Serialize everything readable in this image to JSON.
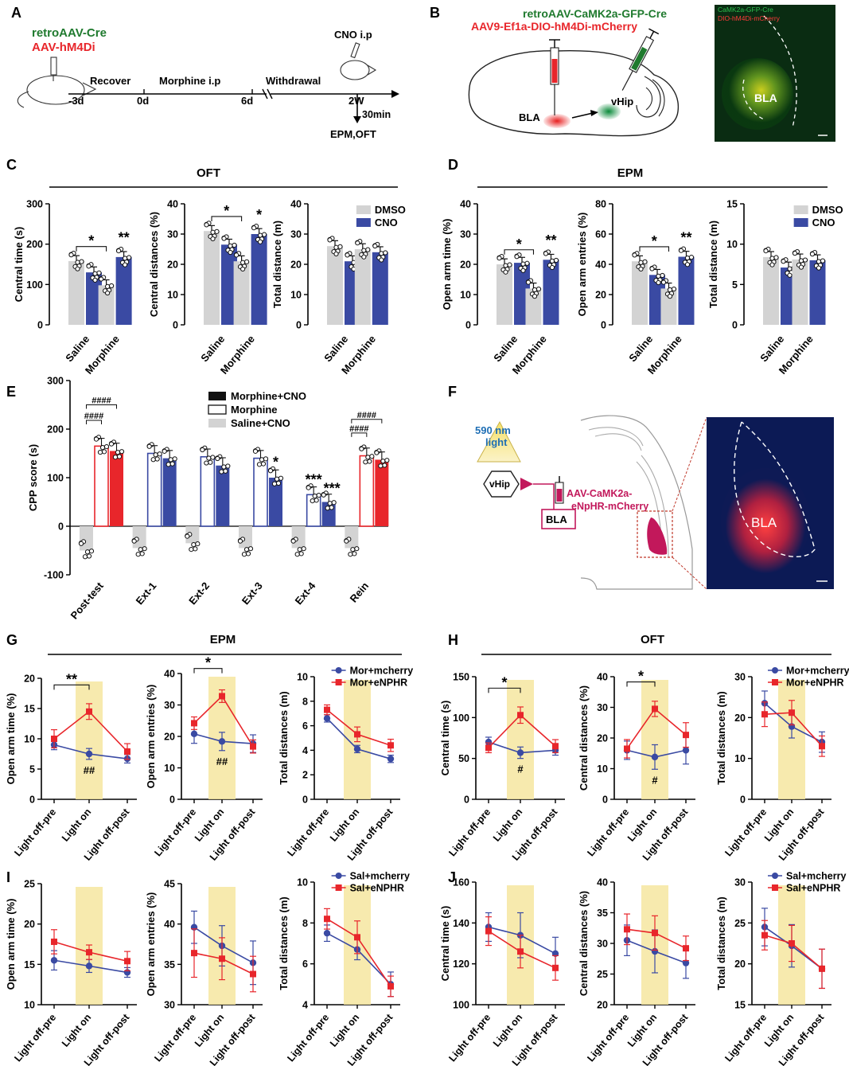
{
  "colors": {
    "grey": "#d3d3d3",
    "blue": "#3a4aa3",
    "red": "#e8262b",
    "yellow": "#f6e6a0",
    "green": "#1f7a2e",
    "magenta": "#c2185b",
    "black": "#111111"
  },
  "panel_letters": {
    "A": "A",
    "B": "B",
    "C": "C",
    "D": "D",
    "E": "E",
    "F": "F",
    "G": "G",
    "H": "H",
    "I": "I",
    "J": "J"
  },
  "panel_a": {
    "virus1": "retroAAV-Cre",
    "virus2": "AAV-hM4Di",
    "cno": "CNO i.p",
    "t0": "-3d",
    "t1": "0d",
    "t2": "6d",
    "t3": "2W",
    "recover": "Recover",
    "morphine": "Morphine i.p",
    "withdrawal": "Withdrawal",
    "delay": "30min",
    "tests": "EPM,OFT"
  },
  "panel_b": {
    "virus_green": "retroAAV-CaMK2a-GFP-Cre",
    "virus_red": "AAV9-Ef1a-DIO-hM4Di-mCherry",
    "bla": "BLA",
    "vhip": "vHip",
    "img_label1": "CaMK2a-GFP-Cre",
    "img_label2": "DIO-hM4Di-mCherry",
    "img_bla": "BLA"
  },
  "panel_f": {
    "light": "590 nm",
    "light2": "light",
    "vhip": "vHip",
    "bla": "BLA",
    "virus1": "AAV-CaMK2a-",
    "virus2": "eNpHR-mCherry",
    "img_bla": "BLA"
  },
  "section_titles": {
    "c": "OFT",
    "d": "EPM",
    "g": "EPM",
    "h": "OFT"
  },
  "chart_data": [
    {
      "id": "C1",
      "type": "bar",
      "title": "OFT",
      "ylabel": "Central time (s)",
      "categories": [
        "Saline",
        "Morphine"
      ],
      "ylim": [
        0,
        300
      ],
      "yticks": [
        0,
        100,
        200,
        300
      ],
      "series": [
        {
          "name": "DMSO",
          "values": [
            158,
            98
          ]
        },
        {
          "name": "CNO",
          "values": [
            130,
            168
          ]
        }
      ],
      "annotations": [
        "*",
        "**"
      ]
    },
    {
      "id": "C2",
      "type": "bar",
      "ylabel": "Central distances (%)",
      "categories": [
        "Saline",
        "Morphine"
      ],
      "ylim": [
        0,
        40
      ],
      "yticks": [
        0,
        10,
        20,
        30,
        40
      ],
      "series": [
        {
          "name": "DMSO",
          "values": [
            31,
            21
          ]
        },
        {
          "name": "CNO",
          "values": [
            26.5,
            30
          ]
        }
      ],
      "annotations": [
        "*",
        "*"
      ]
    },
    {
      "id": "C3",
      "type": "bar",
      "ylabel": "Total distance (m)",
      "categories": [
        "Saline",
        "Morphine"
      ],
      "ylim": [
        0,
        40
      ],
      "yticks": [
        0,
        10,
        20,
        30,
        40
      ],
      "series": [
        {
          "name": "DMSO",
          "values": [
            26,
            25
          ]
        },
        {
          "name": "CNO",
          "values": [
            21,
            24
          ]
        }
      ],
      "legend": [
        "DMSO",
        "CNO"
      ]
    },
    {
      "id": "D1",
      "type": "bar",
      "title": "EPM",
      "ylabel": "Open arm time (%)",
      "categories": [
        "Saline",
        "Morphine"
      ],
      "ylim": [
        0,
        40
      ],
      "yticks": [
        0,
        10,
        20,
        30,
        40
      ],
      "series": [
        {
          "name": "DMSO",
          "values": [
            20,
            12
          ]
        },
        {
          "name": "CNO",
          "values": [
            20.5,
            21.5
          ]
        }
      ],
      "annotations": [
        "*",
        "**"
      ]
    },
    {
      "id": "D2",
      "type": "bar",
      "ylabel": "Open arm entries (%)",
      "categories": [
        "Saline",
        "Morphine"
      ],
      "ylim": [
        0,
        80
      ],
      "yticks": [
        0,
        20,
        40,
        60,
        80
      ],
      "series": [
        {
          "name": "DMSO",
          "values": [
            42,
            24
          ]
        },
        {
          "name": "CNO",
          "values": [
            33,
            45
          ]
        }
      ],
      "annotations": [
        "*",
        "**"
      ]
    },
    {
      "id": "D3",
      "type": "bar",
      "ylabel": "Total distance (m)",
      "categories": [
        "Saline",
        "Morphine"
      ],
      "ylim": [
        0,
        15
      ],
      "yticks": [
        0,
        5,
        10,
        15
      ],
      "series": [
        {
          "name": "DMSO",
          "values": [
            8.4,
            8.1
          ]
        },
        {
          "name": "CNO",
          "values": [
            7.1,
            8.0
          ]
        }
      ],
      "legend": [
        "DMSO",
        "CNO"
      ]
    },
    {
      "id": "E",
      "type": "bar",
      "ylabel": "CPP score (s)",
      "categories": [
        "Post-test",
        "Ext-1",
        "Ext-2",
        "Ext-3",
        "Ext-4",
        "Rein"
      ],
      "ylim": [
        -100,
        300
      ],
      "yticks": [
        -100,
        0,
        100,
        200,
        300
      ],
      "series": [
        {
          "name": "Saline+CNO",
          "values": [
            -50,
            -45,
            -35,
            -45,
            -45,
            -45
          ]
        },
        {
          "name": "Morphine",
          "values": [
            165,
            150,
            143,
            140,
            65,
            145
          ]
        },
        {
          "name": "Morphine+CNO",
          "values": [
            155,
            140,
            125,
            100,
            50,
            137
          ]
        }
      ],
      "legend": [
        "Morphine+CNO",
        "Morphine",
        "Saline+CNO"
      ],
      "annotations": [
        "####",
        "####",
        "####",
        "####",
        "*",
        "***",
        "***"
      ]
    },
    {
      "id": "G1",
      "type": "line",
      "title": "EPM",
      "ylabel": "Open arm time (%)",
      "categories": [
        "Light off-pre",
        "Light on",
        "Light off-post"
      ],
      "ylim": [
        0,
        20
      ],
      "yticks": [
        0,
        5,
        10,
        15,
        20
      ],
      "series": [
        {
          "name": "Mor+mcherry",
          "values": [
            9.0,
            7.5,
            6.7
          ],
          "err": [
            0.8,
            0.9,
            0.7
          ]
        },
        {
          "name": "Mor+eNPHR",
          "values": [
            10.0,
            14.5,
            7.9
          ],
          "err": [
            1.5,
            1.3,
            1.3
          ]
        }
      ],
      "annotations": [
        "**",
        "##"
      ]
    },
    {
      "id": "G2",
      "type": "line",
      "ylabel": "Open arm entries (%)",
      "categories": [
        "Light off-pre",
        "Light on",
        "Light off-post"
      ],
      "ylim": [
        0,
        40
      ],
      "yticks": [
        0,
        10,
        20,
        30,
        40
      ],
      "series": [
        {
          "name": "Mor+mcherry",
          "values": [
            20.8,
            18.4,
            17.7
          ],
          "err": [
            3.0,
            2.9,
            2.8
          ]
        },
        {
          "name": "Mor+eNPHR",
          "values": [
            24.2,
            32.8,
            16.8
          ],
          "err": [
            2.0,
            2.0,
            2.1
          ]
        }
      ],
      "annotations": [
        "*",
        "##"
      ]
    },
    {
      "id": "G3",
      "type": "line",
      "ylabel": "Total distances (m)",
      "categories": [
        "Light off-pre",
        "Light on",
        "Light off-post"
      ],
      "ylim": [
        0,
        10
      ],
      "yticks": [
        0,
        2,
        4,
        6,
        8,
        10
      ],
      "series": [
        {
          "name": "Mor+mcherry",
          "values": [
            6.6,
            4.1,
            3.3
          ],
          "err": [
            0.3,
            0.3,
            0.3
          ]
        },
        {
          "name": "Mor+eNPHR",
          "values": [
            7.3,
            5.3,
            4.4
          ],
          "err": [
            0.4,
            0.6,
            0.5
          ]
        }
      ],
      "legend": [
        "Mor+mcherry",
        "Mor+eNPHR"
      ]
    },
    {
      "id": "H1",
      "type": "line",
      "title": "OFT",
      "ylabel": "Central time (s)",
      "categories": [
        "Light off-pre",
        "Light on",
        "Light off-post"
      ],
      "ylim": [
        0,
        150
      ],
      "yticks": [
        0,
        50,
        100,
        150
      ],
      "series": [
        {
          "name": "Mor+mcherry",
          "values": [
            70,
            57,
            60
          ],
          "err": [
            6,
            7,
            6
          ]
        },
        {
          "name": "Mor+eNPHR",
          "values": [
            63,
            103,
            65
          ],
          "err": [
            6,
            10,
            8
          ]
        }
      ],
      "annotations": [
        "*",
        "#"
      ]
    },
    {
      "id": "H2",
      "type": "line",
      "ylabel": "Central distances (%)",
      "categories": [
        "Light off-pre",
        "Light on",
        "Light off-post"
      ],
      "ylim": [
        0,
        40
      ],
      "yticks": [
        0,
        10,
        20,
        30,
        40
      ],
      "series": [
        {
          "name": "Mor+mcherry",
          "values": [
            16,
            13.8,
            16
          ],
          "err": [
            3,
            4,
            4.5
          ]
        },
        {
          "name": "Mor+eNPHR",
          "values": [
            16.5,
            29.5,
            21
          ],
          "err": [
            3,
            2.5,
            4
          ]
        }
      ],
      "annotations": [
        "*",
        "#"
      ]
    },
    {
      "id": "H3",
      "type": "line",
      "ylabel": "Total distances (m)",
      "categories": [
        "Light off-pre",
        "Light on",
        "Light off-post"
      ],
      "ylim": [
        0,
        30
      ],
      "yticks": [
        0,
        10,
        20,
        30
      ],
      "series": [
        {
          "name": "Mor+mcherry",
          "values": [
            23.5,
            17.8,
            14
          ],
          "err": [
            3,
            2.8,
            2.5
          ]
        },
        {
          "name": "Mor+eNPHR",
          "values": [
            20.8,
            21.2,
            13
          ],
          "err": [
            3,
            3,
            2.5
          ]
        }
      ],
      "legend": [
        "Mor+mcherry",
        "Mor+eNPHR"
      ]
    },
    {
      "id": "I1",
      "type": "line",
      "ylabel": "Open arm time (%)",
      "categories": [
        "Light off-pre",
        "Light on",
        "Light off-post"
      ],
      "ylim": [
        10,
        25
      ],
      "yticks": [
        10,
        15,
        20,
        25
      ],
      "series": [
        {
          "name": "Sal+mcherry",
          "values": [
            15.5,
            14.8,
            14.0
          ],
          "err": [
            1.2,
            0.8,
            0.6
          ]
        },
        {
          "name": "Sal+eNPHR",
          "values": [
            17.8,
            16.5,
            15.4
          ],
          "err": [
            1.5,
            0.9,
            1.2
          ]
        }
      ]
    },
    {
      "id": "I2",
      "type": "line",
      "ylabel": "Open arm entries (%)",
      "categories": [
        "Light off-pre",
        "Light on",
        "Light off-post"
      ],
      "ylim": [
        30,
        45
      ],
      "yticks": [
        30,
        35,
        40,
        45
      ],
      "series": [
        {
          "name": "Sal+mcherry",
          "values": [
            39.6,
            37.3,
            35.2
          ],
          "err": [
            2.0,
            2.5,
            2.7
          ]
        },
        {
          "name": "Sal+eNPHR",
          "values": [
            36.4,
            35.7,
            33.8
          ],
          "err": [
            3.0,
            2.6,
            2.2
          ]
        }
      ]
    },
    {
      "id": "I3",
      "type": "line",
      "ylabel": "Total distances (m)",
      "categories": [
        "Light off-pre",
        "Light on",
        "Light off-post"
      ],
      "ylim": [
        4,
        10
      ],
      "yticks": [
        4,
        6,
        8,
        10
      ],
      "series": [
        {
          "name": "Sal+mcherry",
          "values": [
            7.5,
            6.7,
            5.0
          ],
          "err": [
            0.4,
            0.5,
            0.6
          ]
        },
        {
          "name": "Sal+eNPHR",
          "values": [
            8.2,
            7.3,
            4.9
          ],
          "err": [
            0.5,
            0.8,
            0.5
          ]
        }
      ],
      "legend": [
        "Sal+mcherry",
        "Sal+eNPHR"
      ]
    },
    {
      "id": "J1",
      "type": "line",
      "ylabel": "Central time (s)",
      "categories": [
        "Light off-pre",
        "Light on",
        "Light off-post"
      ],
      "ylim": [
        100,
        160
      ],
      "yticks": [
        100,
        120,
        140,
        160
      ],
      "series": [
        {
          "name": "Sal+mcherry",
          "values": [
            138,
            134,
            125
          ],
          "err": [
            7,
            11,
            8
          ]
        },
        {
          "name": "Sal+eNPHR",
          "values": [
            136,
            126,
            118
          ],
          "err": [
            7,
            8,
            6
          ]
        }
      ]
    },
    {
      "id": "J2",
      "type": "line",
      "ylabel": "Central distances (%)",
      "categories": [
        "Light off-pre",
        "Light on",
        "Light off-post"
      ],
      "ylim": [
        20,
        40
      ],
      "yticks": [
        20,
        25,
        30,
        35,
        40
      ],
      "series": [
        {
          "name": "Sal+mcherry",
          "values": [
            30.5,
            28.7,
            26.8
          ],
          "err": [
            2.5,
            3.5,
            2.5
          ]
        },
        {
          "name": "Sal+eNPHR",
          "values": [
            32.3,
            31.7,
            29.2
          ],
          "err": [
            2.5,
            2.8,
            2.0
          ]
        }
      ]
    },
    {
      "id": "J3",
      "type": "line",
      "ylabel": "Total distances (m)",
      "categories": [
        "Light off-pre",
        "Light on",
        "Light off-post"
      ],
      "ylim": [
        15,
        30
      ],
      "yticks": [
        15,
        20,
        25,
        30
      ],
      "series": [
        {
          "name": "Sal+mcherry",
          "values": [
            24.5,
            22.2,
            19.4
          ],
          "err": [
            2.3,
            2.6,
            2.4
          ]
        },
        {
          "name": "Sal+eNPHR",
          "values": [
            23.5,
            22.5,
            19.4
          ],
          "err": [
            1.8,
            2.2,
            2.4
          ]
        }
      ],
      "legend": [
        "Sal+mcherry",
        "Sal+eNPHR"
      ]
    }
  ]
}
